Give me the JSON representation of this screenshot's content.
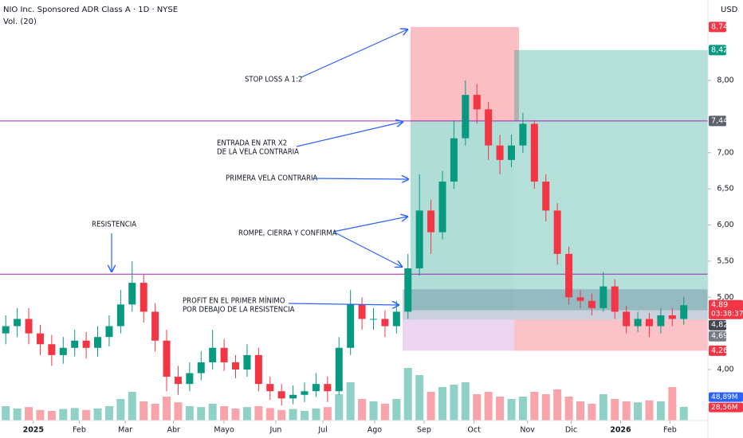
{
  "chart_data": {
    "type": "candlestick",
    "title": "NIO Inc. Sponsored ADR Class A · 1D · NYSE",
    "subtitle": "Vol. (20)",
    "currency": "USD",
    "up_color": "#089981",
    "down_color": "#f23645",
    "xlim": [
      -0.5,
      61.1
    ],
    "xticks": [
      {
        "value": 2.4,
        "label": "2025"
      },
      {
        "value": 6.4,
        "label": "Feb"
      },
      {
        "value": 10.4,
        "label": "Mar"
      },
      {
        "value": 14.6,
        "label": "Abr"
      },
      {
        "value": 19.0,
        "label": "Mayo"
      },
      {
        "value": 23.5,
        "label": "Jun"
      },
      {
        "value": 27.6,
        "label": "Jul"
      },
      {
        "value": 32.1,
        "label": "Ago"
      },
      {
        "value": 36.4,
        "label": "Sep"
      },
      {
        "value": 40.75,
        "label": "Oct"
      },
      {
        "value": 45.4,
        "label": "Nov"
      },
      {
        "value": 49.2,
        "label": "Dic"
      },
      {
        "value": 53.5,
        "label": "2026"
      },
      {
        "value": 57.8,
        "label": "Feb"
      }
    ],
    "ylim": [
      3.295,
      9.113
    ],
    "yticks": [
      {
        "value": 8,
        "label": "8,00"
      },
      {
        "value": 7,
        "label": "7,00"
      },
      {
        "value": 6.5,
        "label": "6,50"
      },
      {
        "value": 6,
        "label": "6,00"
      },
      {
        "value": 5.5,
        "label": "5,50"
      },
      {
        "value": 5,
        "label": "5,00"
      },
      {
        "value": 4,
        "label": "4,00"
      }
    ],
    "open": [
      4.5,
      4.6,
      4.7,
      4.5,
      4.35,
      4.2,
      4.3,
      4.4,
      4.3,
      4.45,
      4.6,
      4.9,
      5.2,
      4.8,
      4.4,
      3.9,
      3.8,
      3.95,
      4.1,
      4.3,
      4.1,
      4.0,
      4.2,
      3.8,
      3.7,
      3.6,
      3.65,
      3.7,
      3.8,
      3.7,
      4.3,
      4.9,
      4.7,
      4.7,
      4.6,
      4.8,
      5.4,
      6.2,
      5.9,
      6.6,
      7.2,
      7.8,
      7.6,
      7.1,
      6.9,
      7.1,
      7.4,
      6.6,
      6.2,
      5.6,
      5.0,
      4.95,
      4.85,
      5.15,
      4.8,
      4.6,
      4.7,
      4.6,
      4.75,
      4.7
    ],
    "high": [
      4.75,
      4.85,
      4.85,
      4.62,
      4.48,
      4.45,
      4.55,
      4.52,
      4.6,
      4.75,
      5.1,
      5.5,
      5.32,
      4.92,
      4.55,
      4.05,
      4.1,
      4.25,
      4.55,
      4.42,
      4.2,
      4.35,
      4.3,
      3.9,
      3.8,
      3.78,
      3.82,
      3.95,
      3.9,
      4.45,
      5.1,
      5.0,
      4.85,
      4.82,
      4.95,
      5.6,
      6.7,
      6.35,
      6.75,
      7.45,
      8.0,
      7.95,
      7.7,
      7.25,
      7.25,
      7.55,
      7.45,
      6.7,
      6.3,
      5.7,
      5.1,
      5.05,
      5.35,
      5.25,
      4.88,
      4.8,
      4.78,
      4.85,
      4.85,
      5.0
    ],
    "low": [
      4.35,
      4.45,
      4.35,
      4.2,
      4.05,
      4.08,
      4.18,
      4.15,
      4.18,
      4.32,
      4.5,
      4.8,
      4.65,
      4.25,
      3.7,
      3.65,
      3.7,
      3.85,
      4.0,
      3.98,
      3.88,
      3.9,
      3.7,
      3.58,
      3.5,
      3.52,
      3.55,
      3.62,
      3.55,
      3.65,
      4.2,
      4.55,
      4.55,
      4.45,
      4.5,
      4.7,
      5.3,
      5.6,
      5.8,
      6.5,
      7.1,
      7.4,
      6.9,
      6.7,
      6.8,
      7.0,
      6.5,
      6.05,
      5.45,
      4.9,
      4.85,
      4.75,
      4.8,
      4.7,
      4.5,
      4.52,
      4.45,
      4.5,
      4.6,
      4.62
    ],
    "close": [
      4.6,
      4.7,
      4.5,
      4.35,
      4.2,
      4.3,
      4.4,
      4.3,
      4.45,
      4.6,
      4.9,
      5.2,
      4.8,
      4.4,
      3.9,
      3.8,
      3.95,
      4.1,
      4.3,
      4.1,
      4.0,
      4.2,
      3.8,
      3.7,
      3.6,
      3.65,
      3.7,
      3.8,
      3.7,
      4.3,
      4.9,
      4.7,
      4.7,
      4.6,
      4.8,
      5.4,
      6.2,
      5.9,
      6.6,
      7.2,
      7.8,
      7.6,
      7.1,
      6.9,
      7.1,
      7.4,
      6.6,
      6.2,
      5.6,
      5.0,
      4.95,
      4.85,
      5.15,
      4.8,
      4.6,
      4.7,
      4.6,
      4.75,
      4.7,
      4.89
    ],
    "volume": [
      30,
      25,
      28,
      22,
      20,
      24,
      26,
      22,
      25,
      30,
      45,
      60,
      40,
      35,
      50,
      38,
      30,
      28,
      35,
      30,
      25,
      28,
      30,
      26,
      22,
      24,
      20,
      25,
      28,
      55,
      80,
      45,
      40,
      35,
      45,
      110,
      95,
      60,
      70,
      75,
      80,
      55,
      60,
      50,
      45,
      50,
      60,
      55,
      65,
      50,
      40,
      35,
      55,
      45,
      40,
      38,
      42,
      40,
      70,
      28.56
    ],
    "volume_ylim": [
      0,
      150
    ],
    "resistance": 5.32,
    "price_tags": [
      {
        "value": 8.74,
        "label": "8,74",
        "color": "#f23645"
      },
      {
        "value": 8.42,
        "label": "8,42",
        "color": "#089981"
      },
      {
        "value": 7.44,
        "label": "7,44",
        "color": "#5d606b"
      },
      {
        "value": 4.89,
        "label": "4,89",
        "color": "#f23645",
        "timer": "03:38:37"
      },
      {
        "value": 4.82,
        "label": "4,82",
        "color": "#434651"
      },
      {
        "value": 4.69,
        "label": "4,69",
        "color": "#787b86"
      },
      {
        "value": 4.26,
        "label": "4,26",
        "color": "#f23645"
      }
    ],
    "volume_tags": [
      {
        "value": 48.89,
        "label": "48,89M",
        "color": "#2962ff"
      },
      {
        "value": 28.56,
        "label": "28,56M",
        "color": "#f23645"
      }
    ],
    "annotations": [
      [
        "STOP LOSS A 1:2"
      ],
      [
        "ENTRADA EN ATR X2",
        "DE LA VELA CONTRARIA"
      ],
      [
        "PRIMERA VELA CONTRARIA"
      ],
      [
        "ROMPE, CIERRA Y CONFIRMA"
      ],
      [
        "RESISTENCIA"
      ],
      [
        "PROFIT EN EL PRIMER MÍNIMO",
        "POR DEBAJO DE LA RESISTENCIA"
      ]
    ]
  }
}
